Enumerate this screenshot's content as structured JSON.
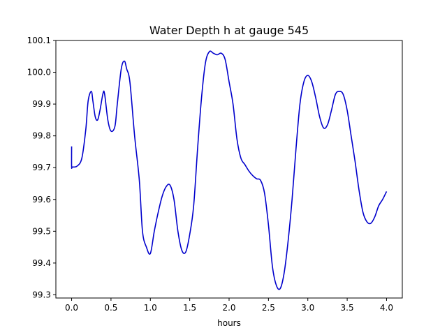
{
  "chart_data": {
    "type": "line",
    "title": "Water Depth h at gauge 545",
    "xlabel": "hours",
    "ylabel": "",
    "xlim": [
      -0.2,
      4.2
    ],
    "ylim": [
      99.29,
      100.1
    ],
    "xticks": [
      0.0,
      0.5,
      1.0,
      1.5,
      2.0,
      2.5,
      3.0,
      3.5,
      4.0
    ],
    "xtick_labels": [
      "0.0",
      "0.5",
      "1.0",
      "1.5",
      "2.0",
      "2.5",
      "3.0",
      "3.5",
      "4.0"
    ],
    "yticks": [
      99.3,
      99.4,
      99.5,
      99.6,
      99.7,
      99.8,
      99.9,
      100.0,
      100.1
    ],
    "ytick_labels": [
      "99.3",
      "99.4",
      "99.5",
      "99.6",
      "99.7",
      "99.8",
      "99.9",
      "100.0",
      "100.1"
    ],
    "grid": false,
    "line_color": "#0000cc",
    "series": [
      {
        "name": "",
        "x": [
          0.0,
          0.0,
          0.01,
          0.07,
          0.13,
          0.18,
          0.21,
          0.25,
          0.27,
          0.3,
          0.33,
          0.36,
          0.4,
          0.42,
          0.46,
          0.5,
          0.55,
          0.58,
          0.63,
          0.67,
          0.7,
          0.74,
          0.8,
          0.86,
          0.9,
          0.95,
          1.0,
          1.05,
          1.1,
          1.15,
          1.2,
          1.25,
          1.3,
          1.35,
          1.4,
          1.45,
          1.5,
          1.55,
          1.6,
          1.65,
          1.7,
          1.75,
          1.8,
          1.85,
          1.9,
          1.95,
          2.0,
          2.05,
          2.1,
          2.15,
          2.2,
          2.25,
          2.3,
          2.35,
          2.4,
          2.45,
          2.5,
          2.55,
          2.6,
          2.65,
          2.7,
          2.75,
          2.8,
          2.85,
          2.9,
          2.95,
          3.0,
          3.05,
          3.1,
          3.15,
          3.2,
          3.25,
          3.3,
          3.35,
          3.4,
          3.45,
          3.5,
          3.55,
          3.6,
          3.65,
          3.7,
          3.75,
          3.8,
          3.85,
          3.9,
          3.95,
          4.0
        ],
        "y": [
          99.767,
          99.703,
          99.702,
          99.705,
          99.73,
          99.82,
          99.91,
          99.94,
          99.91,
          99.86,
          99.85,
          99.88,
          99.935,
          99.93,
          99.85,
          99.815,
          99.83,
          99.9,
          100.01,
          100.035,
          100.01,
          99.97,
          99.8,
          99.66,
          99.5,
          99.45,
          99.43,
          99.5,
          99.56,
          99.61,
          99.64,
          99.645,
          99.6,
          99.5,
          99.44,
          99.435,
          99.49,
          99.58,
          99.76,
          99.92,
          100.03,
          100.065,
          100.06,
          100.055,
          100.06,
          100.04,
          99.97,
          99.9,
          99.79,
          99.73,
          99.71,
          99.69,
          99.675,
          99.665,
          99.66,
          99.62,
          99.52,
          99.39,
          99.33,
          99.32,
          99.37,
          99.47,
          99.6,
          99.76,
          99.9,
          99.97,
          99.99,
          99.97,
          99.92,
          99.86,
          99.825,
          99.835,
          99.88,
          99.93,
          99.94,
          99.93,
          99.88,
          99.8,
          99.72,
          99.63,
          99.56,
          99.53,
          99.525,
          99.545,
          99.58,
          99.6,
          99.625
        ]
      }
    ]
  }
}
